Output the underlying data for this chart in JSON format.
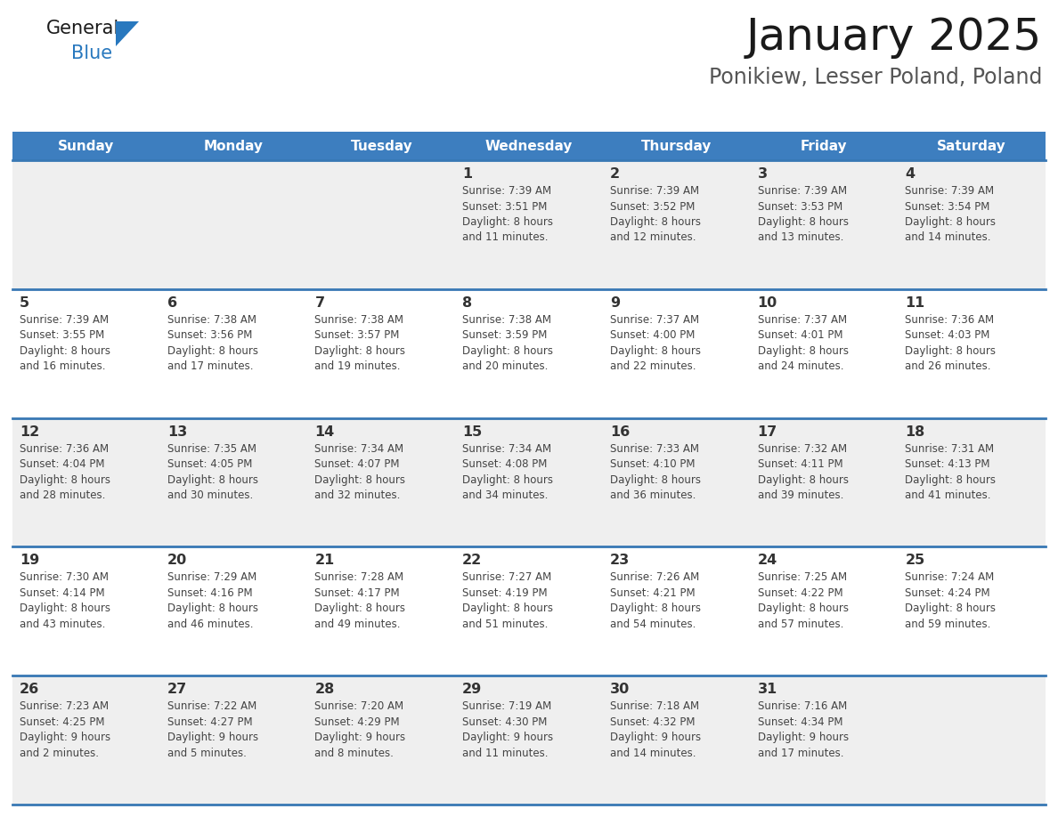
{
  "title": "January 2025",
  "subtitle": "Ponikiew, Lesser Poland, Poland",
  "days_of_week": [
    "Sunday",
    "Monday",
    "Tuesday",
    "Wednesday",
    "Thursday",
    "Friday",
    "Saturday"
  ],
  "header_bg": "#3d7ebf",
  "header_text_color": "#ffffff",
  "cell_bg_light": "#efefef",
  "cell_bg_white": "#ffffff",
  "cell_text_color": "#333333",
  "info_text_color": "#444444",
  "divider_color": "#3878b4",
  "calendar_data": [
    [
      null,
      null,
      null,
      {
        "day": 1,
        "sunrise": "7:39 AM",
        "sunset": "3:51 PM",
        "daylight": "8 hours\nand 11 minutes."
      },
      {
        "day": 2,
        "sunrise": "7:39 AM",
        "sunset": "3:52 PM",
        "daylight": "8 hours\nand 12 minutes."
      },
      {
        "day": 3,
        "sunrise": "7:39 AM",
        "sunset": "3:53 PM",
        "daylight": "8 hours\nand 13 minutes."
      },
      {
        "day": 4,
        "sunrise": "7:39 AM",
        "sunset": "3:54 PM",
        "daylight": "8 hours\nand 14 minutes."
      }
    ],
    [
      {
        "day": 5,
        "sunrise": "7:39 AM",
        "sunset": "3:55 PM",
        "daylight": "8 hours\nand 16 minutes."
      },
      {
        "day": 6,
        "sunrise": "7:38 AM",
        "sunset": "3:56 PM",
        "daylight": "8 hours\nand 17 minutes."
      },
      {
        "day": 7,
        "sunrise": "7:38 AM",
        "sunset": "3:57 PM",
        "daylight": "8 hours\nand 19 minutes."
      },
      {
        "day": 8,
        "sunrise": "7:38 AM",
        "sunset": "3:59 PM",
        "daylight": "8 hours\nand 20 minutes."
      },
      {
        "day": 9,
        "sunrise": "7:37 AM",
        "sunset": "4:00 PM",
        "daylight": "8 hours\nand 22 minutes."
      },
      {
        "day": 10,
        "sunrise": "7:37 AM",
        "sunset": "4:01 PM",
        "daylight": "8 hours\nand 24 minutes."
      },
      {
        "day": 11,
        "sunrise": "7:36 AM",
        "sunset": "4:03 PM",
        "daylight": "8 hours\nand 26 minutes."
      }
    ],
    [
      {
        "day": 12,
        "sunrise": "7:36 AM",
        "sunset": "4:04 PM",
        "daylight": "8 hours\nand 28 minutes."
      },
      {
        "day": 13,
        "sunrise": "7:35 AM",
        "sunset": "4:05 PM",
        "daylight": "8 hours\nand 30 minutes."
      },
      {
        "day": 14,
        "sunrise": "7:34 AM",
        "sunset": "4:07 PM",
        "daylight": "8 hours\nand 32 minutes."
      },
      {
        "day": 15,
        "sunrise": "7:34 AM",
        "sunset": "4:08 PM",
        "daylight": "8 hours\nand 34 minutes."
      },
      {
        "day": 16,
        "sunrise": "7:33 AM",
        "sunset": "4:10 PM",
        "daylight": "8 hours\nand 36 minutes."
      },
      {
        "day": 17,
        "sunrise": "7:32 AM",
        "sunset": "4:11 PM",
        "daylight": "8 hours\nand 39 minutes."
      },
      {
        "day": 18,
        "sunrise": "7:31 AM",
        "sunset": "4:13 PM",
        "daylight": "8 hours\nand 41 minutes."
      }
    ],
    [
      {
        "day": 19,
        "sunrise": "7:30 AM",
        "sunset": "4:14 PM",
        "daylight": "8 hours\nand 43 minutes."
      },
      {
        "day": 20,
        "sunrise": "7:29 AM",
        "sunset": "4:16 PM",
        "daylight": "8 hours\nand 46 minutes."
      },
      {
        "day": 21,
        "sunrise": "7:28 AM",
        "sunset": "4:17 PM",
        "daylight": "8 hours\nand 49 minutes."
      },
      {
        "day": 22,
        "sunrise": "7:27 AM",
        "sunset": "4:19 PM",
        "daylight": "8 hours\nand 51 minutes."
      },
      {
        "day": 23,
        "sunrise": "7:26 AM",
        "sunset": "4:21 PM",
        "daylight": "8 hours\nand 54 minutes."
      },
      {
        "day": 24,
        "sunrise": "7:25 AM",
        "sunset": "4:22 PM",
        "daylight": "8 hours\nand 57 minutes."
      },
      {
        "day": 25,
        "sunrise": "7:24 AM",
        "sunset": "4:24 PM",
        "daylight": "8 hours\nand 59 minutes."
      }
    ],
    [
      {
        "day": 26,
        "sunrise": "7:23 AM",
        "sunset": "4:25 PM",
        "daylight": "9 hours\nand 2 minutes."
      },
      {
        "day": 27,
        "sunrise": "7:22 AM",
        "sunset": "4:27 PM",
        "daylight": "9 hours\nand 5 minutes."
      },
      {
        "day": 28,
        "sunrise": "7:20 AM",
        "sunset": "4:29 PM",
        "daylight": "9 hours\nand 8 minutes."
      },
      {
        "day": 29,
        "sunrise": "7:19 AM",
        "sunset": "4:30 PM",
        "daylight": "9 hours\nand 11 minutes."
      },
      {
        "day": 30,
        "sunrise": "7:18 AM",
        "sunset": "4:32 PM",
        "daylight": "9 hours\nand 14 minutes."
      },
      {
        "day": 31,
        "sunrise": "7:16 AM",
        "sunset": "4:34 PM",
        "daylight": "9 hours\nand 17 minutes."
      },
      null
    ]
  ],
  "logo_color_general": "#1a1a1a",
  "logo_color_blue": "#2878be",
  "logo_triangle_color": "#2878be"
}
